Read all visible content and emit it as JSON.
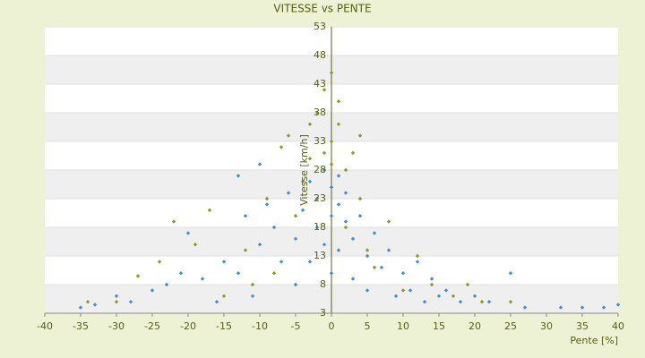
{
  "chart_data": {
    "type": "scatter",
    "title": "VITESSE vs PENTE",
    "x_label": "Pente [%]",
    "y_label": "Vitesse [km/h]",
    "xlim": [
      -40,
      40
    ],
    "xticks": [
      -40,
      -35,
      -30,
      -25,
      -20,
      -15,
      -10,
      -5,
      0,
      5,
      10,
      15,
      20,
      25,
      30,
      35,
      40
    ],
    "ylim": [
      3,
      53
    ],
    "yticks": [
      3,
      8,
      13,
      18,
      23,
      28,
      33,
      38,
      43,
      48,
      53
    ],
    "grid": true,
    "series": [
      {
        "color": "#3a8fd8",
        "x": [
          -35,
          -33,
          -30,
          -28,
          -25,
          -23,
          -21,
          -20,
          -18,
          -16,
          -15,
          -13,
          -13,
          -12,
          -11,
          -10,
          -10,
          -9,
          -8,
          -7,
          -6,
          -5,
          -5,
          -4,
          -3,
          -3,
          -2,
          -2,
          -1,
          -1,
          0,
          0,
          0,
          1,
          1,
          1,
          2,
          2,
          3,
          3,
          4,
          5,
          5,
          6,
          7,
          8,
          9,
          10,
          11,
          12,
          13,
          14,
          15,
          16,
          18,
          20,
          22,
          25,
          27,
          32,
          35,
          38,
          40
        ],
        "values": [
          4,
          4.5,
          6,
          5,
          7,
          8,
          10,
          17,
          9,
          5,
          12,
          27,
          10,
          20,
          6,
          15,
          29,
          22,
          18,
          12,
          24,
          8,
          16,
          21,
          12,
          26,
          18,
          23,
          28,
          15,
          20,
          25,
          10,
          22,
          27,
          14,
          19,
          24,
          16,
          9,
          20,
          13,
          7,
          17,
          11,
          14,
          6,
          10,
          7,
          12,
          5,
          9,
          6,
          7,
          5,
          6,
          5,
          10,
          4,
          4,
          4,
          4,
          4.5
        ]
      },
      {
        "color": "#8a9a1a",
        "x": [
          -34,
          -30,
          -27,
          -24,
          -22,
          -19,
          -17,
          -15,
          -12,
          -11,
          -9,
          -8,
          -7,
          -6,
          -5,
          -4,
          -3,
          -3,
          -2,
          -1,
          -1,
          0,
          0,
          0,
          1,
          1,
          2,
          2,
          3,
          4,
          4,
          5,
          6,
          8,
          10,
          12,
          14,
          17,
          19,
          21,
          25
        ],
        "values": [
          5,
          5,
          9.5,
          12,
          19,
          15,
          21,
          6,
          14,
          8,
          23,
          10,
          32,
          34,
          20,
          26,
          30,
          36,
          38,
          31,
          42,
          33,
          45,
          29,
          36,
          40,
          28,
          18,
          31,
          34,
          23,
          14,
          11,
          19,
          7,
          13,
          8,
          6,
          8,
          5,
          5
        ]
      }
    ]
  }
}
